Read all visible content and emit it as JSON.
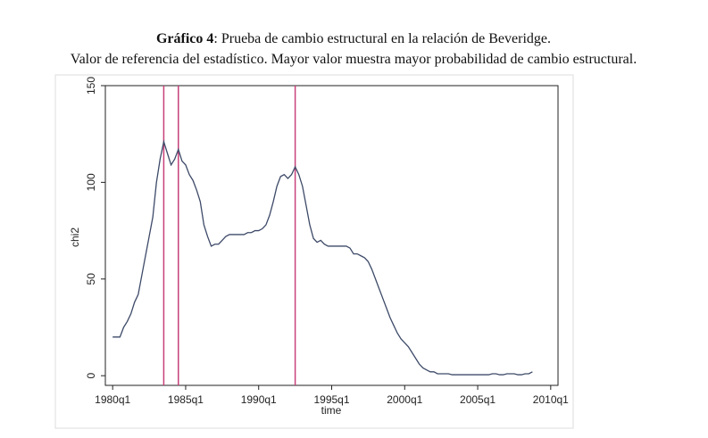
{
  "chart_data": {
    "type": "line",
    "title_label": "Gráfico 4",
    "title": ": Prueba de cambio estructural en la relación de Beveridge.",
    "subtitle": "Valor de referencia del estadístico. Mayor valor muestra mayor probabilidad de cambio estructural.",
    "x_label": "time",
    "y_label": "chi2",
    "x": [
      "1980q1",
      "1980q2",
      "1980q3",
      "1980q4",
      "1981q1",
      "1981q2",
      "1981q3",
      "1981q4",
      "1982q1",
      "1982q2",
      "1982q3",
      "1982q4",
      "1983q1",
      "1983q2",
      "1983q3",
      "1983q4",
      "1984q1",
      "1984q2",
      "1984q3",
      "1984q4",
      "1985q1",
      "1985q2",
      "1985q3",
      "1985q4",
      "1986q1",
      "1986q2",
      "1986q3",
      "1986q4",
      "1987q1",
      "1987q2",
      "1987q3",
      "1987q4",
      "1988q1",
      "1988q2",
      "1988q3",
      "1988q4",
      "1989q1",
      "1989q2",
      "1989q3",
      "1989q4",
      "1990q1",
      "1990q2",
      "1990q3",
      "1990q4",
      "1991q1",
      "1991q2",
      "1991q3",
      "1991q4",
      "1992q1",
      "1992q2",
      "1992q3",
      "1992q4",
      "1993q1",
      "1993q2",
      "1993q3",
      "1993q4",
      "1994q1",
      "1994q2",
      "1994q3",
      "1994q4",
      "1995q1",
      "1995q2",
      "1995q3",
      "1995q4",
      "1996q1",
      "1996q2",
      "1996q3",
      "1996q4",
      "1997q1",
      "1997q2",
      "1997q3",
      "1997q4",
      "1998q1",
      "1998q2",
      "1998q3",
      "1998q4",
      "1999q1",
      "1999q2",
      "1999q3",
      "1999q4",
      "2000q1",
      "2000q2",
      "2000q3",
      "2000q4",
      "2001q1",
      "2001q2",
      "2001q3",
      "2001q4",
      "2002q1",
      "2002q2",
      "2002q3",
      "2002q4",
      "2003q1",
      "2003q2",
      "2003q3",
      "2003q4",
      "2004q1",
      "2004q2",
      "2004q3",
      "2004q4",
      "2005q1",
      "2005q2",
      "2005q3",
      "2005q4",
      "2006q1",
      "2006q2",
      "2006q3",
      "2006q4",
      "2007q1",
      "2007q2",
      "2007q3",
      "2007q4",
      "2008q1",
      "2008q2",
      "2008q3",
      "2008q4"
    ],
    "series": [
      {
        "name": "chi2",
        "color": "#3d4a68",
        "values": [
          20,
          20,
          20,
          25,
          28,
          32,
          38,
          42,
          52,
          62,
          72,
          82,
          100,
          112,
          121,
          115,
          109,
          112,
          117,
          111,
          109,
          104,
          101,
          96,
          90,
          78,
          72,
          67,
          68,
          68,
          70,
          72,
          73,
          73,
          73,
          73,
          73,
          74,
          74,
          75,
          75,
          76,
          78,
          83,
          90,
          98,
          103,
          104,
          102,
          104,
          108,
          104,
          98,
          88,
          78,
          71,
          69,
          70,
          68,
          67,
          67,
          67,
          67,
          67,
          67,
          66,
          63,
          63,
          62,
          61,
          59,
          55,
          50,
          45,
          40,
          35,
          30,
          26,
          22,
          19,
          17,
          15,
          12,
          9,
          6,
          4,
          3,
          2,
          2,
          1,
          1,
          1,
          1,
          0.5,
          0.5,
          0.5,
          0.5,
          0.5,
          0.5,
          0.5,
          0.5,
          0.5,
          0.5,
          0.5,
          1,
          1,
          0.5,
          0.5,
          1,
          1,
          1,
          0.5,
          0.5,
          1,
          1,
          2
        ]
      }
    ],
    "vlines": [
      "1983q3",
      "1984q3",
      "1992q3"
    ],
    "vline_color": "#c8407a",
    "xlim": [
      "1979q3",
      "2010q3"
    ],
    "xticks": [
      "1980q1",
      "1985q1",
      "1990q1",
      "1995q1",
      "2000q1",
      "2005q1",
      "2010q1"
    ],
    "ylim": [
      -5,
      150
    ],
    "yticks": [
      0,
      50,
      100,
      150
    ],
    "grid": false
  }
}
